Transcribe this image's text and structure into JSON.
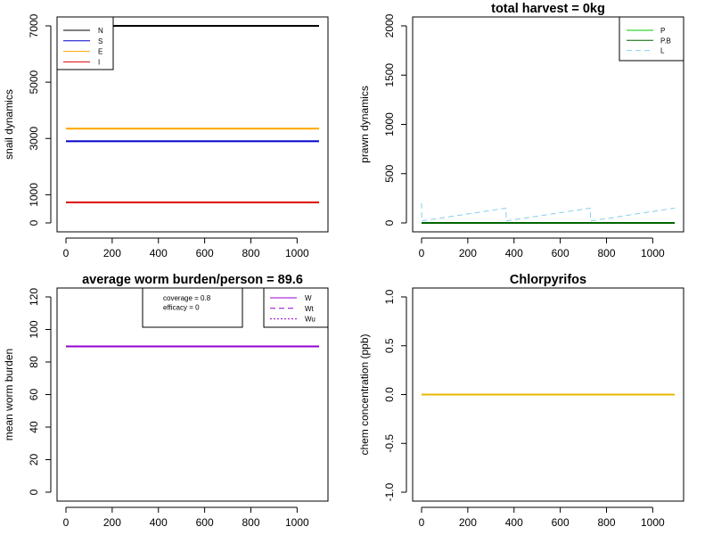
{
  "chart_data": [
    {
      "type": "line",
      "title": "",
      "xlabel": "",
      "ylabel": "snail dynamics",
      "xlim": [
        0,
        1095
      ],
      "ylim": [
        0,
        7000
      ],
      "x_ticks": [
        0,
        200,
        400,
        600,
        800,
        1000
      ],
      "y_ticks": [
        0,
        1000,
        3000,
        5000,
        7000
      ],
      "legend_position": "top-left",
      "series": [
        {
          "name": "N",
          "color": "#000000",
          "style": "solid",
          "x": [
            0,
            1095
          ],
          "y": [
            7000,
            7000
          ]
        },
        {
          "name": "S",
          "color": "#0000cc",
          "style": "solid",
          "x": [
            0,
            1095
          ],
          "y": [
            2900,
            2900
          ]
        },
        {
          "name": "E",
          "color": "#ffa500",
          "style": "solid",
          "x": [
            0,
            1095
          ],
          "y": [
            3350,
            3350
          ]
        },
        {
          "name": "I",
          "color": "#dd0000",
          "style": "solid",
          "x": [
            0,
            1095
          ],
          "y": [
            730,
            730
          ]
        }
      ]
    },
    {
      "type": "line",
      "title": "total harvest = 0kg",
      "xlabel": "",
      "ylabel": "prawn dynamics",
      "xlim": [
        0,
        1095
      ],
      "ylim": [
        0,
        2000
      ],
      "x_ticks": [
        0,
        200,
        400,
        600,
        800,
        1000
      ],
      "y_ticks": [
        0,
        500,
        1000,
        1500,
        2000
      ],
      "legend_position": "top-right",
      "series": [
        {
          "name": "P",
          "color": "#00cc00",
          "style": "solid",
          "x": [
            0,
            1095
          ],
          "y": [
            0,
            0
          ]
        },
        {
          "name": "P.B",
          "color": "#006400",
          "style": "solid",
          "x": [
            0,
            1095
          ],
          "y": [
            0,
            0
          ]
        },
        {
          "name": "L",
          "color": "#87ceeb",
          "style": "dashed",
          "x": [
            0,
            1,
            365,
            366,
            730,
            731,
            1095
          ],
          "y": [
            200,
            20,
            150,
            20,
            150,
            20,
            150
          ]
        }
      ]
    },
    {
      "type": "line",
      "title": "average worm burden/person = 89.6",
      "xlabel": "",
      "ylabel": "mean worm burden",
      "xlim": [
        0,
        1095
      ],
      "ylim": [
        0,
        120
      ],
      "x_ticks": [
        0,
        200,
        400,
        600,
        800,
        1000
      ],
      "y_ticks": [
        0,
        20,
        40,
        60,
        80,
        100,
        120
      ],
      "legend_position": "top-right",
      "annotation": [
        "coverage = 0.8",
        "efficacy =  0"
      ],
      "series": [
        {
          "name": "W",
          "color": "#9400d3",
          "style": "solid",
          "x": [
            0,
            1095
          ],
          "y": [
            89.6,
            89.6
          ]
        },
        {
          "name": "Wt",
          "color": "#9400d3",
          "style": "dashed",
          "x": [
            0,
            1095
          ],
          "y": [
            89.6,
            89.6
          ]
        },
        {
          "name": "Wu",
          "color": "#9400d3",
          "style": "dotted",
          "x": [
            0,
            1095
          ],
          "y": [
            89.6,
            89.6
          ]
        }
      ]
    },
    {
      "type": "line",
      "title": "Chlorpyrifos",
      "xlabel": "",
      "ylabel": "chem concentration (ppb)",
      "xlim": [
        0,
        1095
      ],
      "ylim": [
        -1.0,
        1.0
      ],
      "x_ticks": [
        0,
        200,
        400,
        600,
        800,
        1000
      ],
      "y_ticks": [
        -1.0,
        -0.5,
        0.0,
        0.5,
        1.0
      ],
      "y_tick_labels": [
        "-1.0",
        "-0.5",
        "0.0",
        "0.5",
        "1.0"
      ],
      "series": [
        {
          "color": "#e6b800",
          "style": "solid",
          "x": [
            0,
            1095
          ],
          "y": [
            0,
            0
          ]
        }
      ]
    }
  ]
}
